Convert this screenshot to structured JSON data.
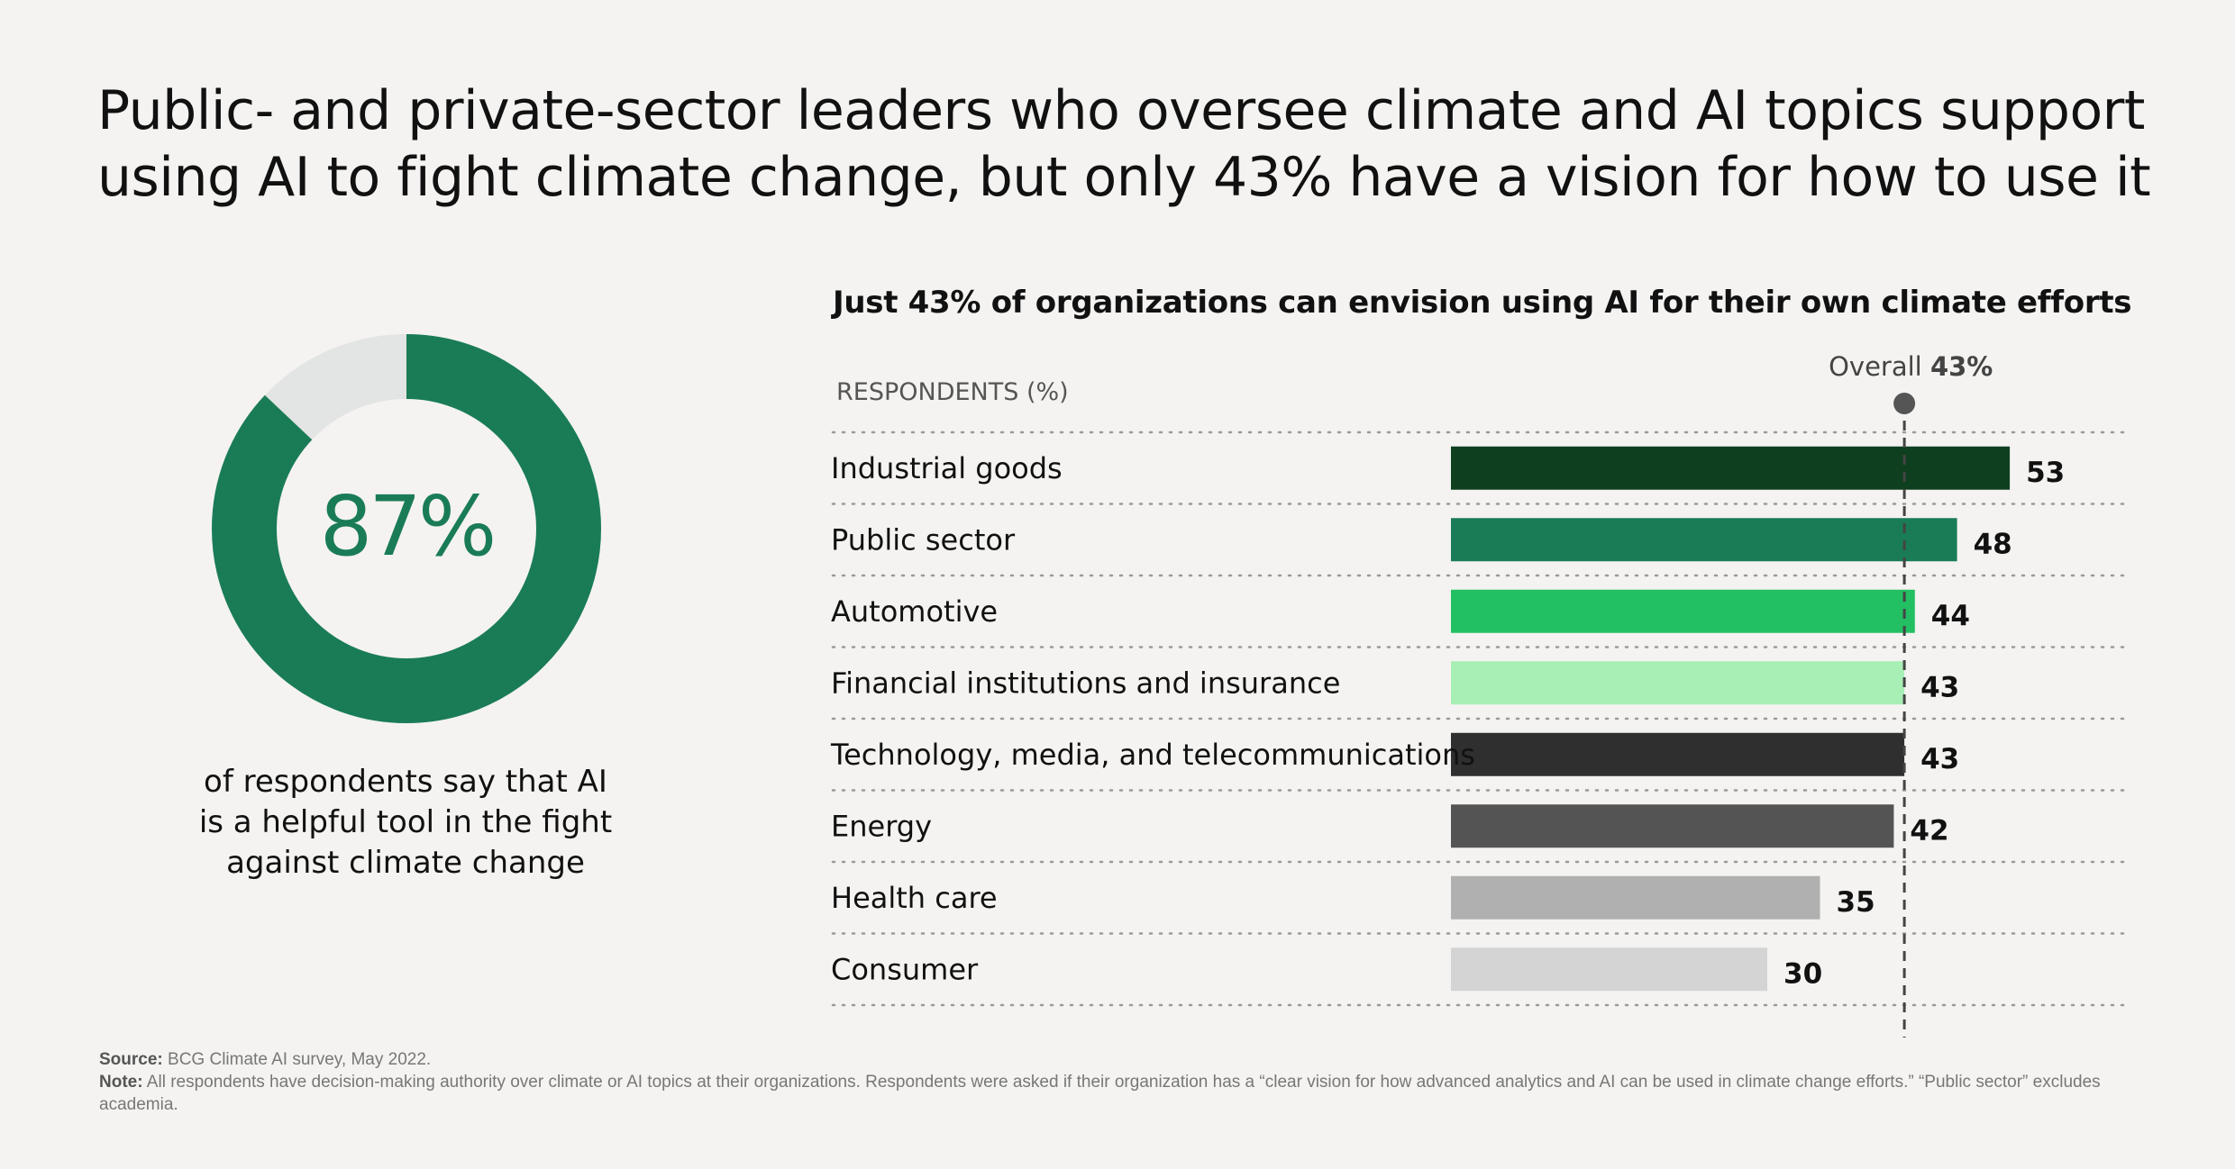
{
  "title": {
    "line1": "Public- and private-sector leaders who oversee climate and AI topics support",
    "line2": "using AI to fight climate change, but only 43% have a vision for how to use it"
  },
  "donut": {
    "value_label": "87%",
    "value": 87,
    "caption_line1": "of respondents say that AI",
    "caption_line2": "is a helpful tool in the fight",
    "caption_line3": "against climate change",
    "fill_color": "#1a7c56",
    "track_color": "#e3e4e4"
  },
  "chart_data": {
    "type": "bar",
    "orientation": "horizontal",
    "title": "Just 43% of organizations can envision using AI for their own climate efforts",
    "axis_label": "RESPONDENTS (%)",
    "categories": [
      "Industrial goods",
      "Public sector",
      "Automotive",
      "Financial institutions and insurance",
      "Technology, media, and telecommunications",
      "Energy",
      "Health care",
      "Consumer"
    ],
    "values": [
      53,
      48,
      44,
      43,
      43,
      42,
      35,
      30
    ],
    "colors": [
      "#0e3f1f",
      "#1a7c56",
      "#23bf63",
      "#a8efb6",
      "#2f2f2f",
      "#545454",
      "#b0b0b0",
      "#d4d4d4"
    ],
    "reference_line": {
      "label": "Overall",
      "value_label": "43%",
      "value": 43
    },
    "grid": "dotted horizontal separators"
  },
  "footer": {
    "source_label": "Source:",
    "source_text": "BCG Climate AI survey, May 2022.",
    "note_label": "Note:",
    "note_text": "All respondents have decision-making authority over climate or AI topics at their organizations. Respondents were asked if their organization has a “clear vision for how advanced analytics and AI can be used in climate change efforts.” “Public sector” excludes academia."
  }
}
